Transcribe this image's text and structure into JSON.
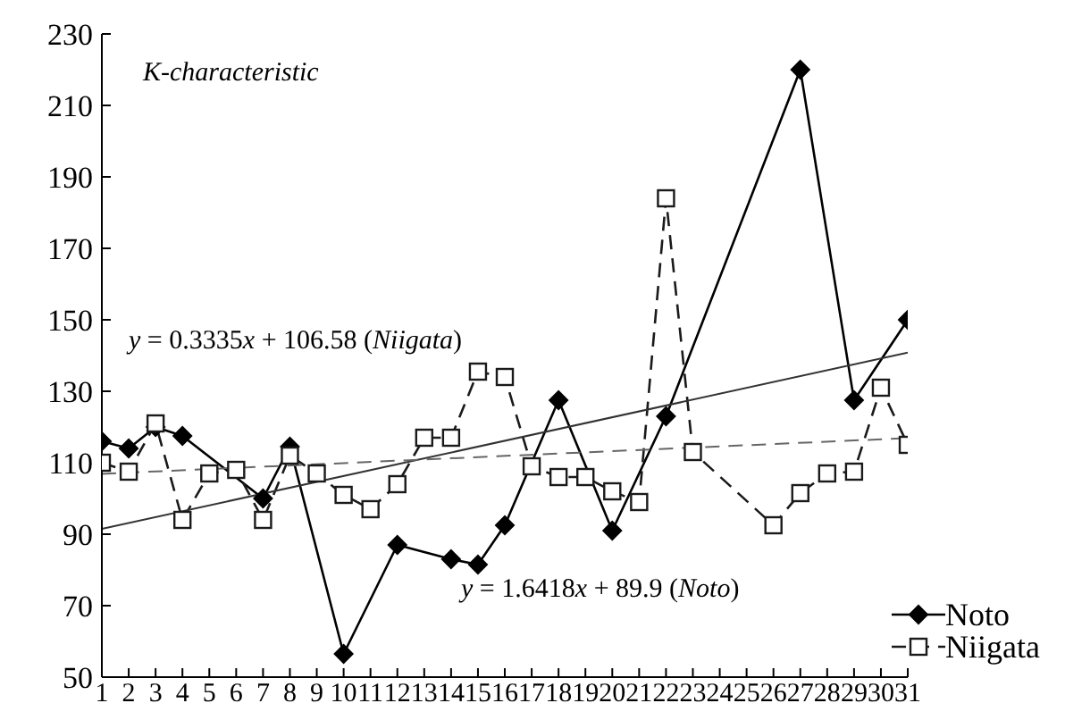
{
  "chart_data": {
    "type": "line",
    "xlim": [
      1,
      31
    ],
    "xticks": [
      1,
      2,
      3,
      4,
      5,
      6,
      7,
      8,
      9,
      10,
      11,
      12,
      13,
      14,
      15,
      16,
      17,
      18,
      19,
      20,
      21,
      22,
      23,
      24,
      25,
      26,
      27,
      28,
      29,
      30,
      31
    ],
    "ylim": [
      50,
      230
    ],
    "yticks": [
      50,
      70,
      90,
      110,
      130,
      150,
      170,
      190,
      210,
      230
    ],
    "grid": false,
    "legend": "bottom right",
    "annotations": [
      "K-characteristic",
      "y = 0.3335x + 106.58 (Niigata)",
      "y = 1.6418x + 89.9 (Noto)"
    ],
    "series": [
      {
        "name": "Noto",
        "color": "#000000",
        "marker": "diamond",
        "line_style": "solid",
        "x": [
          1,
          2,
          3,
          4,
          7,
          8,
          10,
          12,
          14,
          15,
          16,
          18,
          20,
          22,
          27,
          29,
          31
        ],
        "values": [
          116,
          114,
          120,
          117.5,
          100,
          114.5,
          56.5,
          87,
          83,
          81.5,
          92.5,
          127.5,
          91,
          123,
          220,
          127.5,
          150
        ]
      },
      {
        "name": "Niigata",
        "color": "#1a1a1a",
        "marker": "square",
        "line_style": "dashed",
        "x": [
          1,
          2,
          3,
          4,
          5,
          6,
          7,
          8,
          9,
          10,
          11,
          12,
          13,
          14,
          15,
          16,
          17,
          18,
          19,
          20,
          21,
          22,
          23,
          26,
          27,
          28,
          29,
          30,
          31
        ],
        "values": [
          110,
          107.5,
          121,
          94,
          107,
          108,
          94,
          112,
          107,
          101,
          97,
          104,
          117,
          117,
          135.5,
          134,
          109,
          106,
          106,
          102,
          99,
          184,
          113,
          92.5,
          101.5,
          107,
          107.5,
          131,
          115
        ]
      },
      {
        "type": "line",
        "color": "#333333",
        "marker": "none",
        "line_style": "solid",
        "x": [
          1,
          31
        ],
        "values": [
          91.5,
          140.8
        ]
      },
      {
        "type": "line",
        "color": "#666666",
        "marker": "none",
        "line_style": "dashed",
        "x": [
          1,
          31
        ],
        "values": [
          106.9,
          116.9
        ]
      }
    ]
  }
}
